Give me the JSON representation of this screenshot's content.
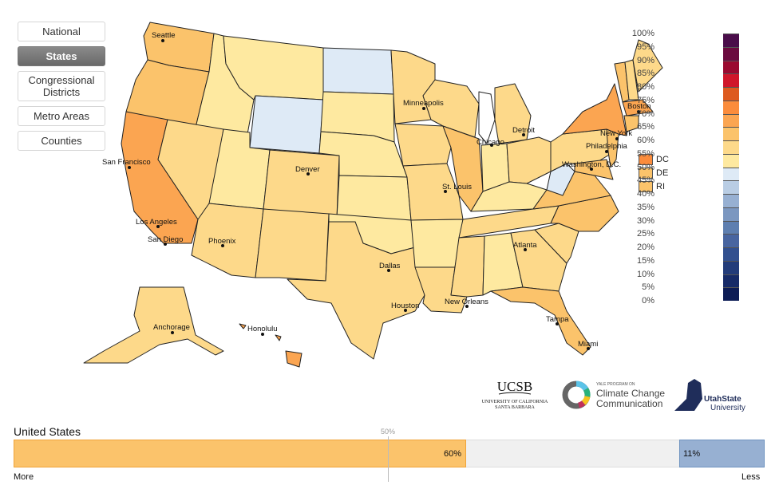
{
  "nav": {
    "items": [
      {
        "label": "National",
        "active": false
      },
      {
        "label": "States",
        "active": true
      },
      {
        "label": "Congressional Districts",
        "active": false
      },
      {
        "label": "Metro Areas",
        "active": false
      },
      {
        "label": "Counties",
        "active": false
      }
    ]
  },
  "map": {
    "cities": [
      "Seattle",
      "San Francisco",
      "Los Angeles",
      "San Diego",
      "Phoenix",
      "Denver",
      "Minneapolis",
      "Chicago",
      "Detroit",
      "St. Louis",
      "Dallas",
      "Houston",
      "New Orleans",
      "Atlanta",
      "Tampa",
      "Miami",
      "Boston",
      "New York",
      "Philadelphia",
      "Washington, D.C.",
      "Anchorage",
      "Honolulu"
    ],
    "small_states": [
      {
        "label": "DC",
        "color": "#fb8c3c"
      },
      {
        "label": "DE",
        "color": "#fbc36b"
      },
      {
        "label": "RI",
        "color": "#fbc36b"
      }
    ],
    "colors": {
      "c50": "#fee9a0",
      "c55": "#fdd98a",
      "c60": "#fbc36b",
      "c65": "#fba551",
      "c45": "#deeaf6"
    }
  },
  "legend": {
    "labels": [
      "100%",
      "95%",
      "90%",
      "85%",
      "80%",
      "75%",
      "70%",
      "65%",
      "60%",
      "55%",
      "50%",
      "45%",
      "40%",
      "35%",
      "30%",
      "25%",
      "20%",
      "15%",
      "10%",
      "5%",
      "0%"
    ],
    "colors": [
      "#4a0d4a",
      "#6b0a3f",
      "#9a0a30",
      "#d0162a",
      "#dd5a1f",
      "#fb8c3c",
      "#fba551",
      "#fbc36b",
      "#fdd98a",
      "#fee9a0",
      "#deeaf6",
      "#b9cde4",
      "#97b0d2",
      "#7b97c0",
      "#5e7fb0",
      "#4865a0",
      "#32508f",
      "#233c7a",
      "#172b68",
      "#0d1c55"
    ]
  },
  "logos": {
    "ucsb": {
      "name": "UCSB",
      "sub1": "UNIVERSITY OF CALIFORNIA",
      "sub2": "SANTA BARBARA"
    },
    "yale": {
      "small": "YALE PROGRAM ON",
      "line1": "Climate Change",
      "line2": "Communication"
    },
    "usu": {
      "line1": "UtahState",
      "line2": "University"
    }
  },
  "summary_bar": {
    "title": "United States",
    "more_value": "60%",
    "less_value": "11%",
    "midpoint_label": "50%",
    "more_label": "More",
    "less_label": "Less"
  }
}
